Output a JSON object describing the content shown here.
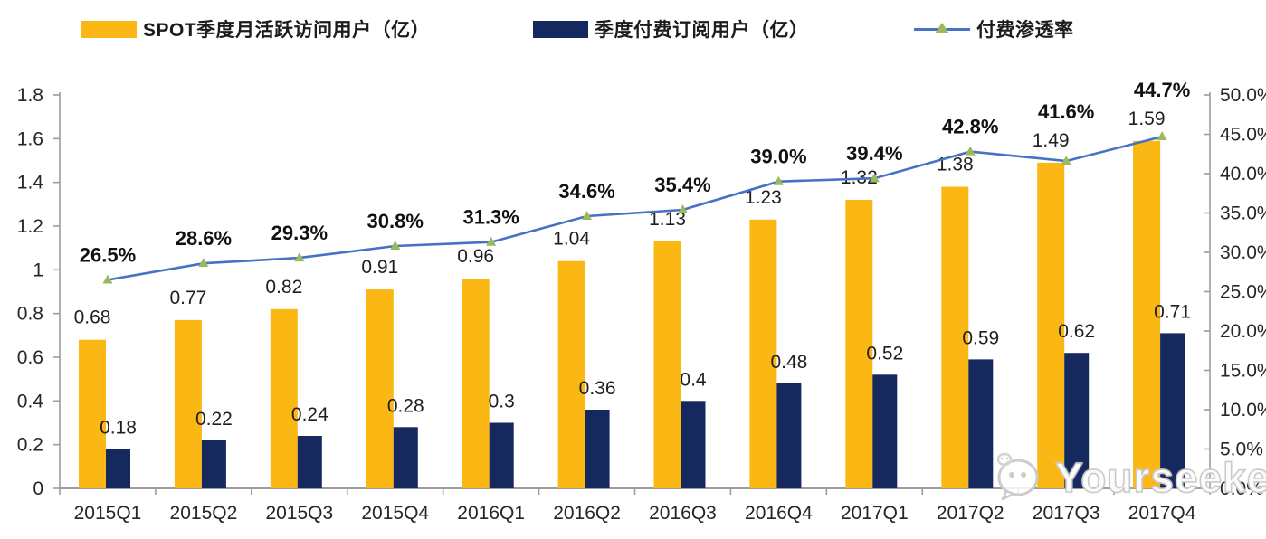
{
  "legend": {
    "mau": {
      "label": "SPOT季度月活跃访问用户（亿）",
      "color": "#FBB714"
    },
    "paid": {
      "label": "季度付费订阅用户（亿）",
      "color": "#16295F"
    },
    "penetration": {
      "label": "付费渗透率",
      "line_color": "#4472C4",
      "marker_color": "#9DB95C",
      "marker": "triangle-icon"
    }
  },
  "watermark": {
    "text": "Yourseeker",
    "icon": "wechat-icon"
  },
  "colors": {
    "axis_line": "#9c9c9c",
    "tick_text": "#262626",
    "value_label": "#1f1f1f",
    "pct_label": "#111111"
  },
  "chart_data": {
    "type": "bar",
    "subtype": "grouped-bars-with-line-combo",
    "title": "",
    "categories": [
      "2015Q1",
      "2015Q2",
      "2015Q3",
      "2015Q4",
      "2016Q1",
      "2016Q2",
      "2016Q3",
      "2016Q4",
      "2017Q1",
      "2017Q2",
      "2017Q3",
      "2017Q4"
    ],
    "series": [
      {
        "name": "SPOT季度月活跃访问用户（亿）",
        "type": "bar",
        "axis": "left",
        "color": "#FBB714",
        "values": [
          0.68,
          0.77,
          0.82,
          0.91,
          0.96,
          1.04,
          1.13,
          1.23,
          1.32,
          1.38,
          1.49,
          1.59
        ],
        "labels": [
          "0.68",
          "0.77",
          "0.82",
          "0.91",
          "0.96",
          "1.04",
          "1.13",
          "1.23",
          "1.32",
          "1.38",
          "1.49",
          "1.59"
        ]
      },
      {
        "name": "季度付费订阅用户（亿）",
        "type": "bar",
        "axis": "left",
        "color": "#16295F",
        "values": [
          0.18,
          0.22,
          0.24,
          0.28,
          0.3,
          0.36,
          0.4,
          0.48,
          0.52,
          0.59,
          0.62,
          0.71
        ],
        "labels": [
          "0.18",
          "0.22",
          "0.24",
          "0.28",
          "0.3",
          "0.36",
          "0.4",
          "0.48",
          "0.52",
          "0.59",
          "0.62",
          "0.71"
        ]
      },
      {
        "name": "付费渗透率",
        "type": "line",
        "axis": "right",
        "color": "#4472C4",
        "marker": "triangle",
        "marker_color": "#9DB95C",
        "values": [
          26.5,
          28.6,
          29.3,
          30.8,
          31.3,
          34.6,
          35.4,
          39.0,
          39.4,
          42.8,
          41.6,
          44.7
        ],
        "labels": [
          "26.5%",
          "28.6%",
          "29.3%",
          "30.8%",
          "31.3%",
          "34.6%",
          "35.4%",
          "39.0%",
          "39.4%",
          "42.8%",
          "41.6%",
          "44.7%"
        ]
      }
    ],
    "left_axis": {
      "min": 0,
      "max": 1.8,
      "step": 0.2,
      "ticks": [
        "0",
        "0.2",
        "0.4",
        "0.6",
        "0.8",
        "1",
        "1.2",
        "1.4",
        "1.6",
        "1.8"
      ]
    },
    "right_axis": {
      "min": 0,
      "max": 50,
      "step": 5,
      "format": "percent",
      "ticks": [
        "0.0%",
        "5.0%",
        "10.0%",
        "15.0%",
        "20.0%",
        "25.0%",
        "30.0%",
        "35.0%",
        "40.0%",
        "45.0%",
        "50.0%"
      ]
    },
    "grid": false,
    "legend_position": "top"
  }
}
